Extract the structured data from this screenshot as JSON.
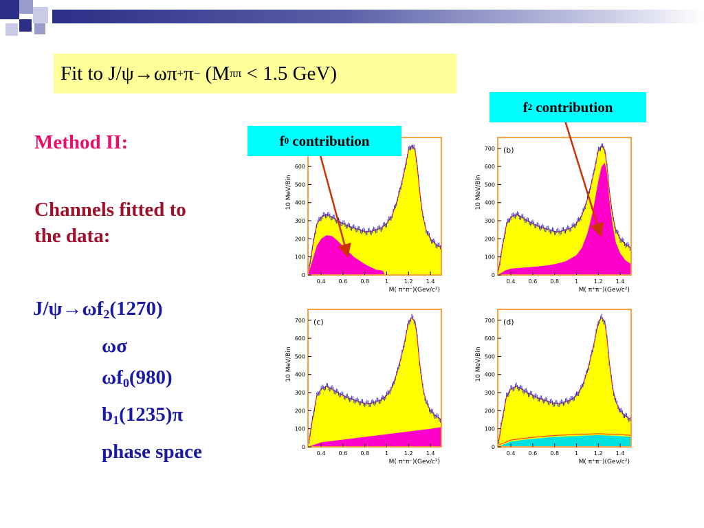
{
  "slide": {
    "title": {
      "part1": "Fit to J/ψ→ωπ",
      "sup1": "+",
      "part2": "π",
      "sup2": "−",
      "part3": " (M",
      "sub": "ππ",
      "part4": " < 1.5 GeV)"
    },
    "f0_label": {
      "prefix": "f",
      "sub": "0",
      "suffix": " contribution"
    },
    "f2_label": {
      "prefix": "f",
      "sub": "2",
      "suffix": " contribution"
    },
    "method": "Method II:",
    "channels_line1": "Channels fitted to",
    "channels_line2": "the data:",
    "reactions": [
      {
        "pre": "J/ψ→ωf",
        "sub": "2",
        "post": "(1270)"
      },
      {
        "pre": "ωσ",
        "sub": "",
        "post": ""
      },
      {
        "pre": "ωf",
        "sub": "0",
        "post": "(980)"
      },
      {
        "pre": "b",
        "sub": "1",
        "post": "(1235)π"
      },
      {
        "pre": "phase space",
        "sub": "",
        "post": ""
      }
    ]
  },
  "colors": {
    "data_fill": "#ffff00",
    "data_line": "#3333cc",
    "fit_line": "#ff2020",
    "component_fill": "#ff00cc",
    "cyan_component": "#00e0e0",
    "frame": "#ffa040",
    "label_box": "#00ffff",
    "title_box": "#ffff99",
    "arrow": "#cc3300"
  },
  "chart_data": [
    {
      "type": "area",
      "panel_label": "",
      "ylabel": "10 MeV/Bin",
      "xlabel": "M( π⁺π⁻)(Gev/c²)",
      "xlim": [
        0.28,
        1.5
      ],
      "ylim": [
        0,
        760
      ],
      "x_ticks": [
        "0.4",
        "0.6",
        "0.8",
        "1",
        "1.2",
        "1.4"
      ],
      "y_ticks": [
        "0",
        "100",
        "200",
        "300",
        "400",
        "500",
        "600",
        "700"
      ],
      "series": [
        {
          "x": [
            0.28,
            0.32,
            0.36,
            0.4,
            0.45,
            0.5,
            0.55,
            0.6,
            0.65,
            0.7,
            0.75,
            0.8,
            0.85,
            0.9,
            0.95,
            1.0,
            1.05,
            1.1,
            1.15,
            1.2,
            1.23,
            1.26,
            1.28,
            1.3,
            1.33,
            1.36,
            1.4,
            1.45,
            1.5
          ],
          "y": [
            0,
            150,
            280,
            320,
            335,
            320,
            300,
            285,
            270,
            260,
            250,
            240,
            240,
            250,
            260,
            285,
            330,
            420,
            540,
            690,
            715,
            690,
            600,
            470,
            330,
            250,
            200,
            170,
            150
          ]
        },
        {
          "name": "f0 contribution",
          "x": [
            0.28,
            0.32,
            0.36,
            0.4,
            0.45,
            0.5,
            0.55,
            0.6,
            0.65,
            0.7,
            0.75,
            0.8,
            0.85,
            0.9,
            0.95,
            0.97,
            0.98,
            1.0,
            1.5
          ],
          "y": [
            0,
            80,
            160,
            200,
            220,
            215,
            190,
            160,
            130,
            100,
            80,
            60,
            45,
            30,
            25,
            20,
            0,
            0,
            0
          ]
        }
      ]
    },
    {
      "type": "area",
      "panel_label": "(b)",
      "ylabel": "10 MeV/Bin",
      "xlabel": "M( π⁺π⁻)(Gev/c²)",
      "xlim": [
        0.28,
        1.5
      ],
      "ylim": [
        0,
        760
      ],
      "x_ticks": [
        "0.4",
        "0.6",
        "0.8",
        "1",
        "1.2",
        "1.4"
      ],
      "y_ticks": [
        "0",
        "100",
        "200",
        "300",
        "400",
        "500",
        "600",
        "700"
      ],
      "series": [
        {
          "x": [
            0.28,
            0.32,
            0.36,
            0.4,
            0.45,
            0.5,
            0.55,
            0.6,
            0.65,
            0.7,
            0.75,
            0.8,
            0.85,
            0.9,
            0.95,
            1.0,
            1.05,
            1.1,
            1.15,
            1.2,
            1.23,
            1.26,
            1.28,
            1.3,
            1.33,
            1.36,
            1.4,
            1.45,
            1.5
          ],
          "y": [
            0,
            150,
            280,
            320,
            335,
            320,
            300,
            285,
            270,
            260,
            250,
            240,
            240,
            250,
            260,
            285,
            330,
            420,
            540,
            690,
            715,
            690,
            600,
            470,
            330,
            250,
            200,
            170,
            150
          ]
        },
        {
          "name": "f2 contribution",
          "x": [
            0.28,
            0.35,
            0.4,
            0.5,
            0.6,
            0.7,
            0.8,
            0.9,
            1.0,
            1.05,
            1.1,
            1.15,
            1.2,
            1.23,
            1.26,
            1.28,
            1.3,
            1.33,
            1.36,
            1.4,
            1.45,
            1.5
          ],
          "y": [
            0,
            25,
            35,
            40,
            45,
            50,
            60,
            75,
            110,
            150,
            230,
            350,
            520,
            600,
            620,
            560,
            420,
            280,
            180,
            120,
            80,
            60
          ]
        }
      ]
    },
    {
      "type": "area",
      "panel_label": "(c)",
      "ylabel": "10 MeV/Bin",
      "xlabel": "M( π⁺π⁻)(Gev/c²)",
      "xlim": [
        0.28,
        1.5
      ],
      "ylim": [
        0,
        760
      ],
      "x_ticks": [
        "0.4",
        "0.6",
        "0.8",
        "1",
        "1.2",
        "1.4"
      ],
      "y_ticks": [
        "0",
        "100",
        "200",
        "300",
        "400",
        "500",
        "600",
        "700"
      ],
      "series": [
        {
          "x": [
            0.28,
            0.32,
            0.36,
            0.4,
            0.45,
            0.5,
            0.55,
            0.6,
            0.65,
            0.7,
            0.75,
            0.8,
            0.85,
            0.9,
            0.95,
            1.0,
            1.05,
            1.1,
            1.15,
            1.2,
            1.23,
            1.26,
            1.28,
            1.3,
            1.33,
            1.36,
            1.4,
            1.45,
            1.5
          ],
          "y": [
            0,
            150,
            280,
            320,
            335,
            320,
            300,
            285,
            270,
            260,
            250,
            240,
            240,
            250,
            260,
            285,
            330,
            420,
            540,
            690,
            715,
            690,
            600,
            470,
            330,
            250,
            200,
            170,
            150
          ]
        },
        {
          "name": "b1(1235)π",
          "x": [
            0.28,
            0.4,
            0.6,
            0.8,
            1.0,
            1.2,
            1.4,
            1.5
          ],
          "y": [
            0,
            25,
            40,
            55,
            70,
            85,
            100,
            110
          ]
        }
      ]
    },
    {
      "type": "area",
      "panel_label": "(d)",
      "ylabel": "10 MeV/Bin",
      "xlabel": "M( π⁺π⁻)(Gev/c²)",
      "xlim": [
        0.28,
        1.5
      ],
      "ylim": [
        0,
        760
      ],
      "x_ticks": [
        "0.4",
        "0.6",
        "0.8",
        "1",
        "1.2",
        "1.4"
      ],
      "y_ticks": [
        "0",
        "100",
        "200",
        "300",
        "400",
        "500",
        "600",
        "700"
      ],
      "series": [
        {
          "x": [
            0.28,
            0.32,
            0.36,
            0.4,
            0.45,
            0.5,
            0.55,
            0.6,
            0.65,
            0.7,
            0.75,
            0.8,
            0.85,
            0.9,
            0.95,
            1.0,
            1.05,
            1.1,
            1.15,
            1.2,
            1.23,
            1.26,
            1.28,
            1.3,
            1.33,
            1.36,
            1.4,
            1.45,
            1.5
          ],
          "y": [
            0,
            150,
            280,
            320,
            335,
            320,
            300,
            285,
            270,
            260,
            250,
            240,
            240,
            250,
            260,
            285,
            330,
            420,
            540,
            690,
            715,
            690,
            600,
            470,
            330,
            250,
            200,
            170,
            150
          ]
        },
        {
          "name": "phase space",
          "x": [
            0.28,
            0.4,
            0.6,
            0.8,
            1.0,
            1.2,
            1.4,
            1.5
          ],
          "y": [
            0,
            30,
            45,
            55,
            60,
            65,
            60,
            55
          ]
        }
      ]
    }
  ]
}
